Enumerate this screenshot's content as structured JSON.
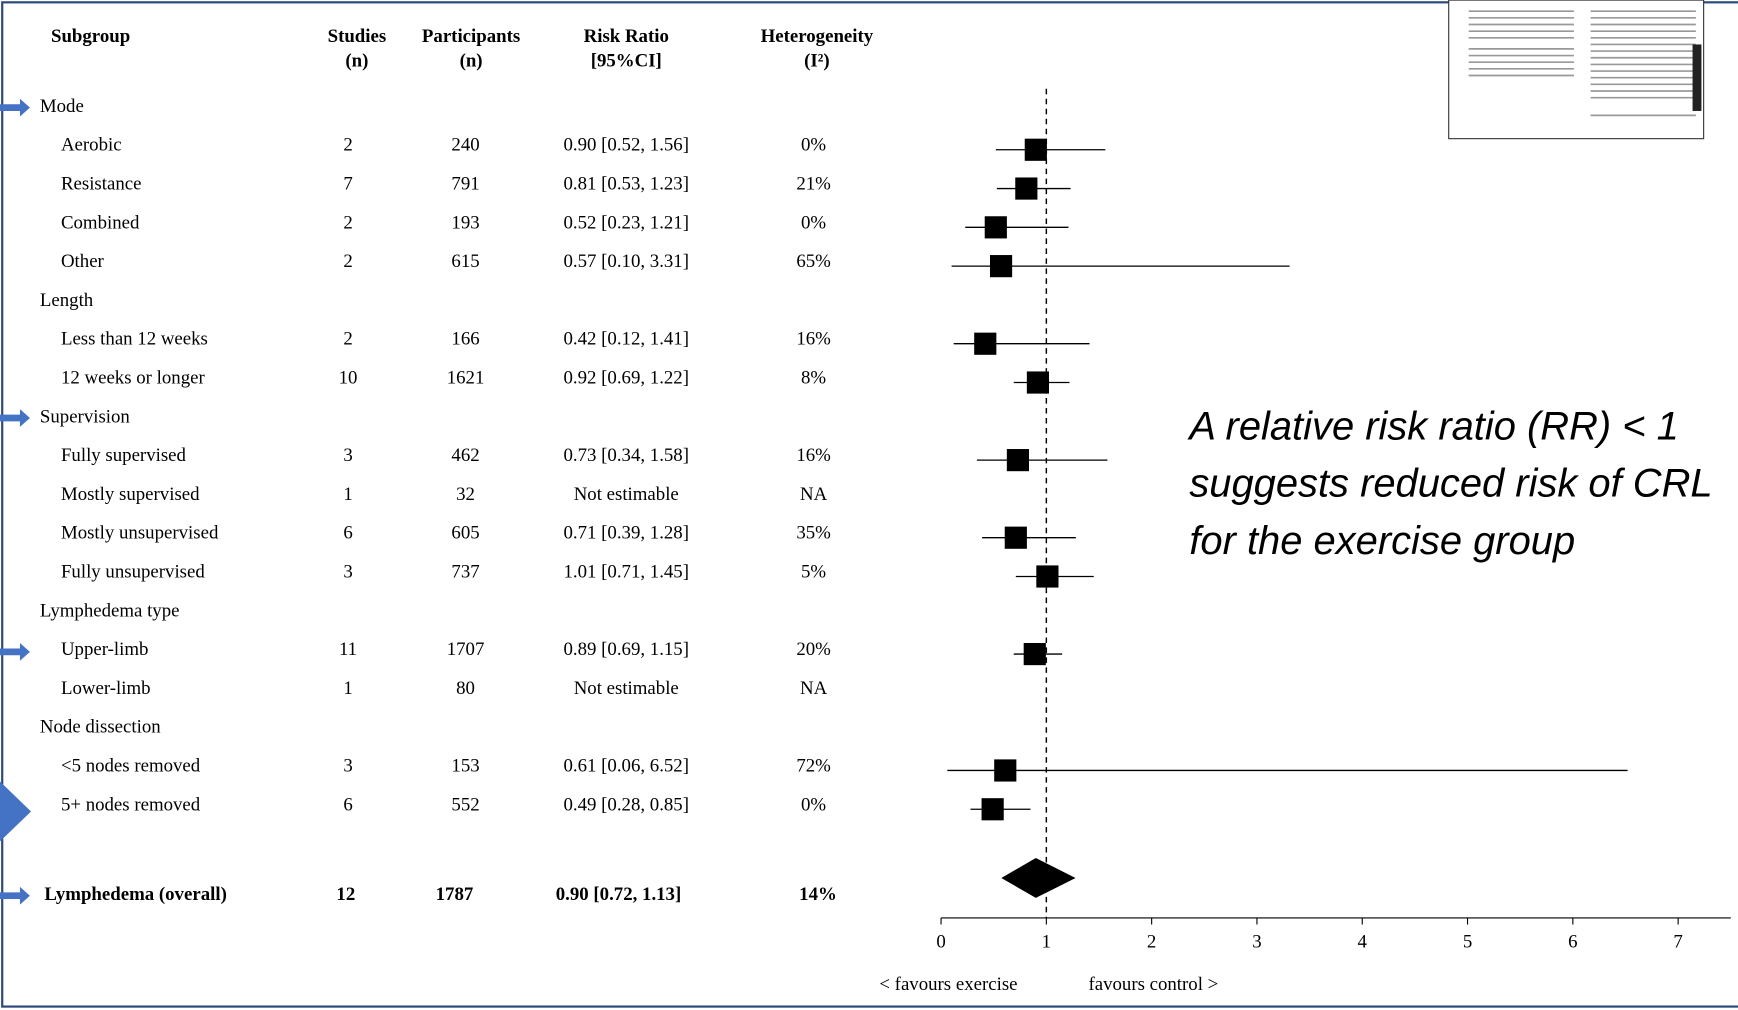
{
  "chart_data": {
    "type": "forest",
    "columns": [
      [
        "Subgroup"
      ],
      [
        "Studies",
        "(n)"
      ],
      [
        "Participants",
        "(n)"
      ],
      [
        "Risk Ratio",
        "[95%CI]"
      ],
      [
        "Heterogeneity",
        "(I²)"
      ]
    ],
    "groups": [
      {
        "name": "Mode",
        "rows": [
          {
            "label": "Aerobic",
            "studies": 2,
            "participants": 240,
            "ci_text": "0.90 [0.52, 1.56]",
            "rr": 0.9,
            "lo": 0.52,
            "hi": 1.56,
            "i2": "0%"
          },
          {
            "label": "Resistance",
            "studies": 7,
            "participants": 791,
            "ci_text": "0.81 [0.53, 1.23]",
            "rr": 0.81,
            "lo": 0.53,
            "hi": 1.23,
            "i2": "21%"
          },
          {
            "label": "Combined",
            "studies": 2,
            "participants": 193,
            "ci_text": "0.52 [0.23, 1.21]",
            "rr": 0.52,
            "lo": 0.23,
            "hi": 1.21,
            "i2": "0%"
          },
          {
            "label": "Other",
            "studies": 2,
            "participants": 615,
            "ci_text": "0.57 [0.10, 3.31]",
            "rr": 0.57,
            "lo": 0.1,
            "hi": 3.31,
            "i2": "65%"
          }
        ]
      },
      {
        "name": "Length",
        "rows": [
          {
            "label": "Less than 12 weeks",
            "studies": 2,
            "participants": 166,
            "ci_text": "0.42 [0.12, 1.41]",
            "rr": 0.42,
            "lo": 0.12,
            "hi": 1.41,
            "i2": "16%"
          },
          {
            "label": "12 weeks or longer",
            "studies": 10,
            "participants": 1621,
            "ci_text": "0.92 [0.69, 1.22]",
            "rr": 0.92,
            "lo": 0.69,
            "hi": 1.22,
            "i2": "8%"
          }
        ]
      },
      {
        "name": "Supervision",
        "rows": [
          {
            "label": "Fully supervised",
            "studies": 3,
            "participants": 462,
            "ci_text": "0.73 [0.34, 1.58]",
            "rr": 0.73,
            "lo": 0.34,
            "hi": 1.58,
            "i2": "16%"
          },
          {
            "label": "Mostly supervised",
            "studies": 1,
            "participants": 32,
            "ci_text": "Not estimable",
            "i2": "NA"
          },
          {
            "label": "Mostly unsupervised",
            "studies": 6,
            "participants": 605,
            "ci_text": "0.71 [0.39, 1.28]",
            "rr": 0.71,
            "lo": 0.39,
            "hi": 1.28,
            "i2": "35%"
          },
          {
            "label": "Fully unsupervised",
            "studies": 3,
            "participants": 737,
            "ci_text": "1.01 [0.71, 1.45]",
            "rr": 1.01,
            "lo": 0.71,
            "hi": 1.45,
            "i2": "5%"
          }
        ]
      },
      {
        "name": "Lymphedema type",
        "rows": [
          {
            "label": "Upper-limb",
            "studies": 11,
            "participants": 1707,
            "ci_text": "0.89 [0.69, 1.15]",
            "rr": 0.89,
            "lo": 0.69,
            "hi": 1.15,
            "i2": "20%"
          },
          {
            "label": "Lower-limb",
            "studies": 1,
            "participants": 80,
            "ci_text": "Not estimable",
            "i2": "NA"
          }
        ]
      },
      {
        "name": "Node dissection",
        "rows": [
          {
            "label": "<5 nodes removed",
            "studies": 3,
            "participants": 153,
            "ci_text": "0.61 [0.06, 6.52]",
            "rr": 0.61,
            "lo": 0.06,
            "hi": 6.52,
            "i2": "72%"
          },
          {
            "label": "5+ nodes removed",
            "studies": 6,
            "participants": 552,
            "ci_text": "0.49 [0.28, 0.85]",
            "rr": 0.49,
            "lo": 0.28,
            "hi": 0.85,
            "i2": "0%"
          }
        ]
      }
    ],
    "overall": {
      "label": "Lymphedema (overall)",
      "studies": 12,
      "participants": 1787,
      "ci_text": "0.90 [0.72, 1.13]",
      "rr": 0.9,
      "lo": 0.72,
      "hi": 1.13,
      "i2": "14%"
    },
    "xlim": [
      0,
      7.5
    ],
    "xticks": [
      0,
      1,
      2,
      3,
      4,
      5,
      6,
      7
    ],
    "ref_line": 1,
    "x_labels": [
      "< favours exercise",
      "favours control >"
    ],
    "annotation": [
      "A relative risk ratio (RR) < 1",
      "suggests reduced risk of CRL",
      "for the exercise group"
    ]
  }
}
